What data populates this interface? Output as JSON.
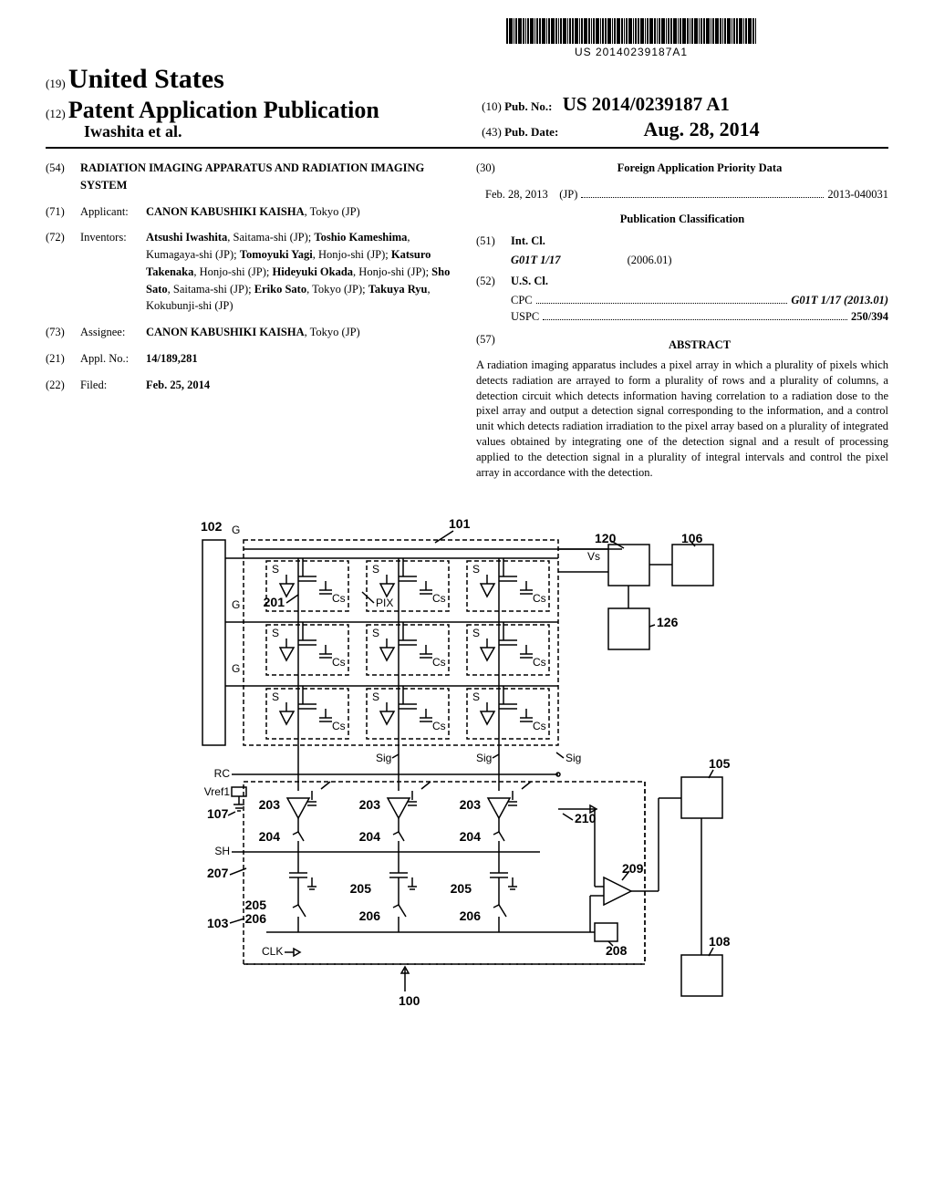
{
  "barcode_number": "US 20140239187A1",
  "header": {
    "country_code": "(19)",
    "country": "United States",
    "doc_type_code": "(12)",
    "doc_type": "Patent Application Publication",
    "authors": "Iwashita et al.",
    "pubno_code": "(10)",
    "pubno_label": "Pub. No.:",
    "pubno": "US 2014/0239187 A1",
    "pubdate_code": "(43)",
    "pubdate_label": "Pub. Date:",
    "pubdate": "Aug. 28, 2014"
  },
  "left_col": {
    "title_code": "(54)",
    "title": "RADIATION IMAGING APPARATUS AND RADIATION IMAGING SYSTEM",
    "applicant_code": "(71)",
    "applicant_label": "Applicant:",
    "applicant": "CANON KABUSHIKI KAISHA",
    "applicant_loc": "Tokyo (JP)",
    "inventors_code": "(72)",
    "inventors_label": "Inventors:",
    "inventors_html": "<b>Atsushi Iwashita</b>, Saitama-shi (JP); <b>Toshio Kameshima</b>, Kumagaya-shi (JP); <b>Tomoyuki Yagi</b>, Honjo-shi (JP); <b>Katsuro Takenaka</b>, Honjo-shi (JP); <b>Hideyuki Okada</b>, Honjo-shi (JP); <b>Sho Sato</b>, Saitama-shi (JP); <b>Eriko Sato</b>, Tokyo (JP); <b>Takuya Ryu</b>, Kokubunji-shi (JP)",
    "assignee_code": "(73)",
    "assignee_label": "Assignee:",
    "assignee": "CANON KABUSHIKI KAISHA",
    "assignee_loc": "Tokyo (JP)",
    "applno_code": "(21)",
    "applno_label": "Appl. No.:",
    "applno": "14/189,281",
    "filed_code": "(22)",
    "filed_label": "Filed:",
    "filed": "Feb. 25, 2014"
  },
  "right_col": {
    "foreign_code": "(30)",
    "foreign_title": "Foreign Application Priority Data",
    "foreign_date": "Feb. 28, 2013",
    "foreign_cc": "(JP)",
    "foreign_no": "2013-040031",
    "pubclass_title": "Publication Classification",
    "intcl_code": "(51)",
    "intcl_label": "Int. Cl.",
    "intcl_class": "G01T 1/17",
    "intcl_ver": "(2006.01)",
    "uscl_code": "(52)",
    "uscl_label": "U.S. Cl.",
    "cpc_label": "CPC",
    "cpc_val": "G01T 1/17 (2013.01)",
    "uspc_label": "USPC",
    "uspc_val": "250/394",
    "abstract_code": "(57)",
    "abstract_title": "ABSTRACT",
    "abstract": "A radiation imaging apparatus includes a pixel array in which a plurality of pixels which detects radiation are arrayed to form a plurality of rows and a plurality of columns, a detection circuit which detects information having correlation to a radiation dose to the pixel array and output a detection signal corresponding to the information, and a control unit which detects radiation irradiation to the pixel array based on a plurality of integrated values obtained by integrating one of the detection signal and a result of processing applied to the detection signal in a plurality of integral intervals and control the pixel array in accordance with the detection."
  },
  "figure": {
    "labels": {
      "l102": "102",
      "l101": "101",
      "l120": "120",
      "l106": "106",
      "l126": "126",
      "l105": "105",
      "l107": "107",
      "l207": "207",
      "l103": "103",
      "l100": "100",
      "l108": "108",
      "l201": "201",
      "l203a": "203",
      "l203b": "203",
      "l203c": "203",
      "l204a": "204",
      "l204b": "204",
      "l204c": "204",
      "l205a": "205",
      "l205b": "205",
      "l205c": "205",
      "l206a": "206",
      "l206b": "206",
      "l206c": "206",
      "l208": "208",
      "l209": "209",
      "l210": "210",
      "G1": "G",
      "G2": "G",
      "G3": "G",
      "S": "S",
      "Cs": "Cs",
      "PIX": "PIX",
      "Sig": "Sig",
      "Vs": "Vs",
      "RC": "RC",
      "Vref1": "Vref1",
      "SH": "SH",
      "CLK": "CLK"
    }
  }
}
